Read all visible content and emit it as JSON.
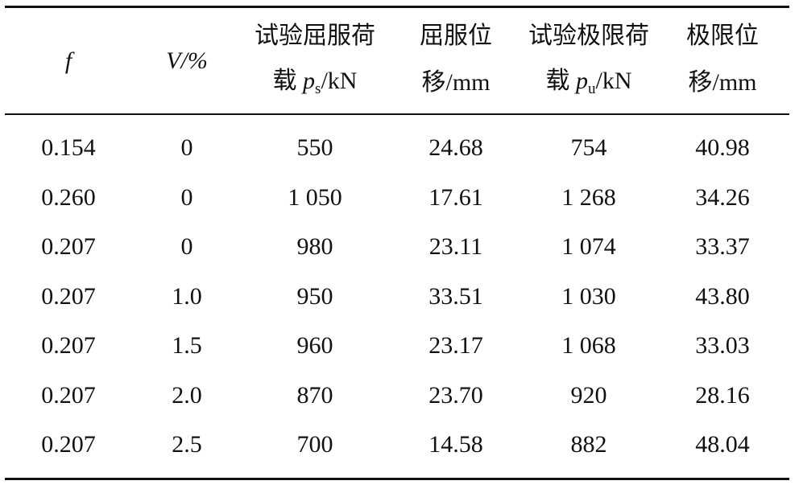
{
  "table": {
    "header": [
      {
        "text": "f"
      },
      {
        "text": "V/%"
      },
      {
        "line1": "试验屈服荷",
        "line2": "载",
        "symbol": "p",
        "sub": "s",
        "unit": "/kN"
      },
      {
        "line1": "屈服位",
        "line2": "移/mm"
      },
      {
        "line1": "试验极限荷",
        "line2": "载",
        "symbol": "p",
        "sub": "u",
        "unit": "/kN"
      },
      {
        "line1": "极限位",
        "line2": "移/mm"
      }
    ],
    "rows": [
      [
        "0.154",
        "0",
        "550",
        "24.68",
        "754",
        "40.98"
      ],
      [
        "0.260",
        "0",
        "1 050",
        "17.61",
        "1 268",
        "34.26"
      ],
      [
        "0.207",
        "0",
        "980",
        "23.11",
        "1 074",
        "33.37"
      ],
      [
        "0.207",
        "1.0",
        "950",
        "33.51",
        "1 030",
        "43.80"
      ],
      [
        "0.207",
        "1.5",
        "960",
        "23.17",
        "1 068",
        "33.03"
      ],
      [
        "0.207",
        "2.0",
        "870",
        "23.70",
        "920",
        "28.16"
      ],
      [
        "0.207",
        "2.5",
        "700",
        "14.58",
        "882",
        "48.04"
      ]
    ]
  }
}
